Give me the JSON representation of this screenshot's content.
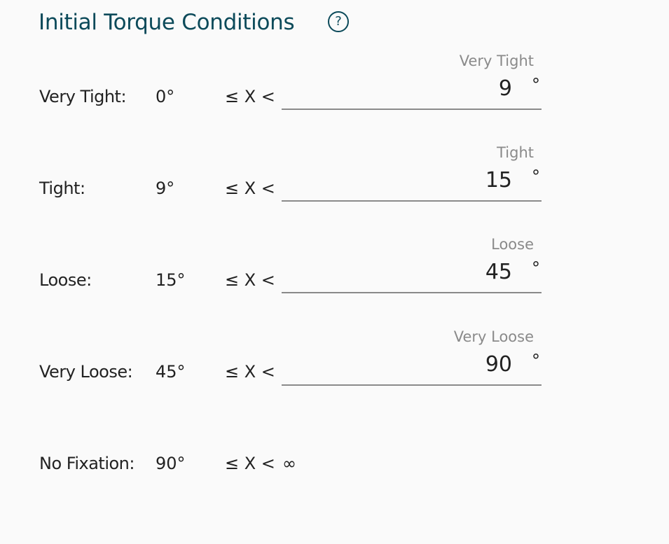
{
  "title": "Initial Torque Conditions",
  "help_icon": "?",
  "operator": "≤ X <",
  "unit": "°",
  "rows": [
    {
      "label": "Very Tight:",
      "min": "0°",
      "field_label": "Very Tight",
      "value": "9"
    },
    {
      "label": "Tight:",
      "min": "9°",
      "field_label": "Tight",
      "value": "15"
    },
    {
      "label": "Loose:",
      "min": "15°",
      "field_label": "Loose",
      "value": "45"
    },
    {
      "label": "Very Loose:",
      "min": "45°",
      "field_label": "Very Loose",
      "value": "90"
    }
  ],
  "last_row": {
    "label": "No Fixation:",
    "min": "90°",
    "max": "∞"
  }
}
